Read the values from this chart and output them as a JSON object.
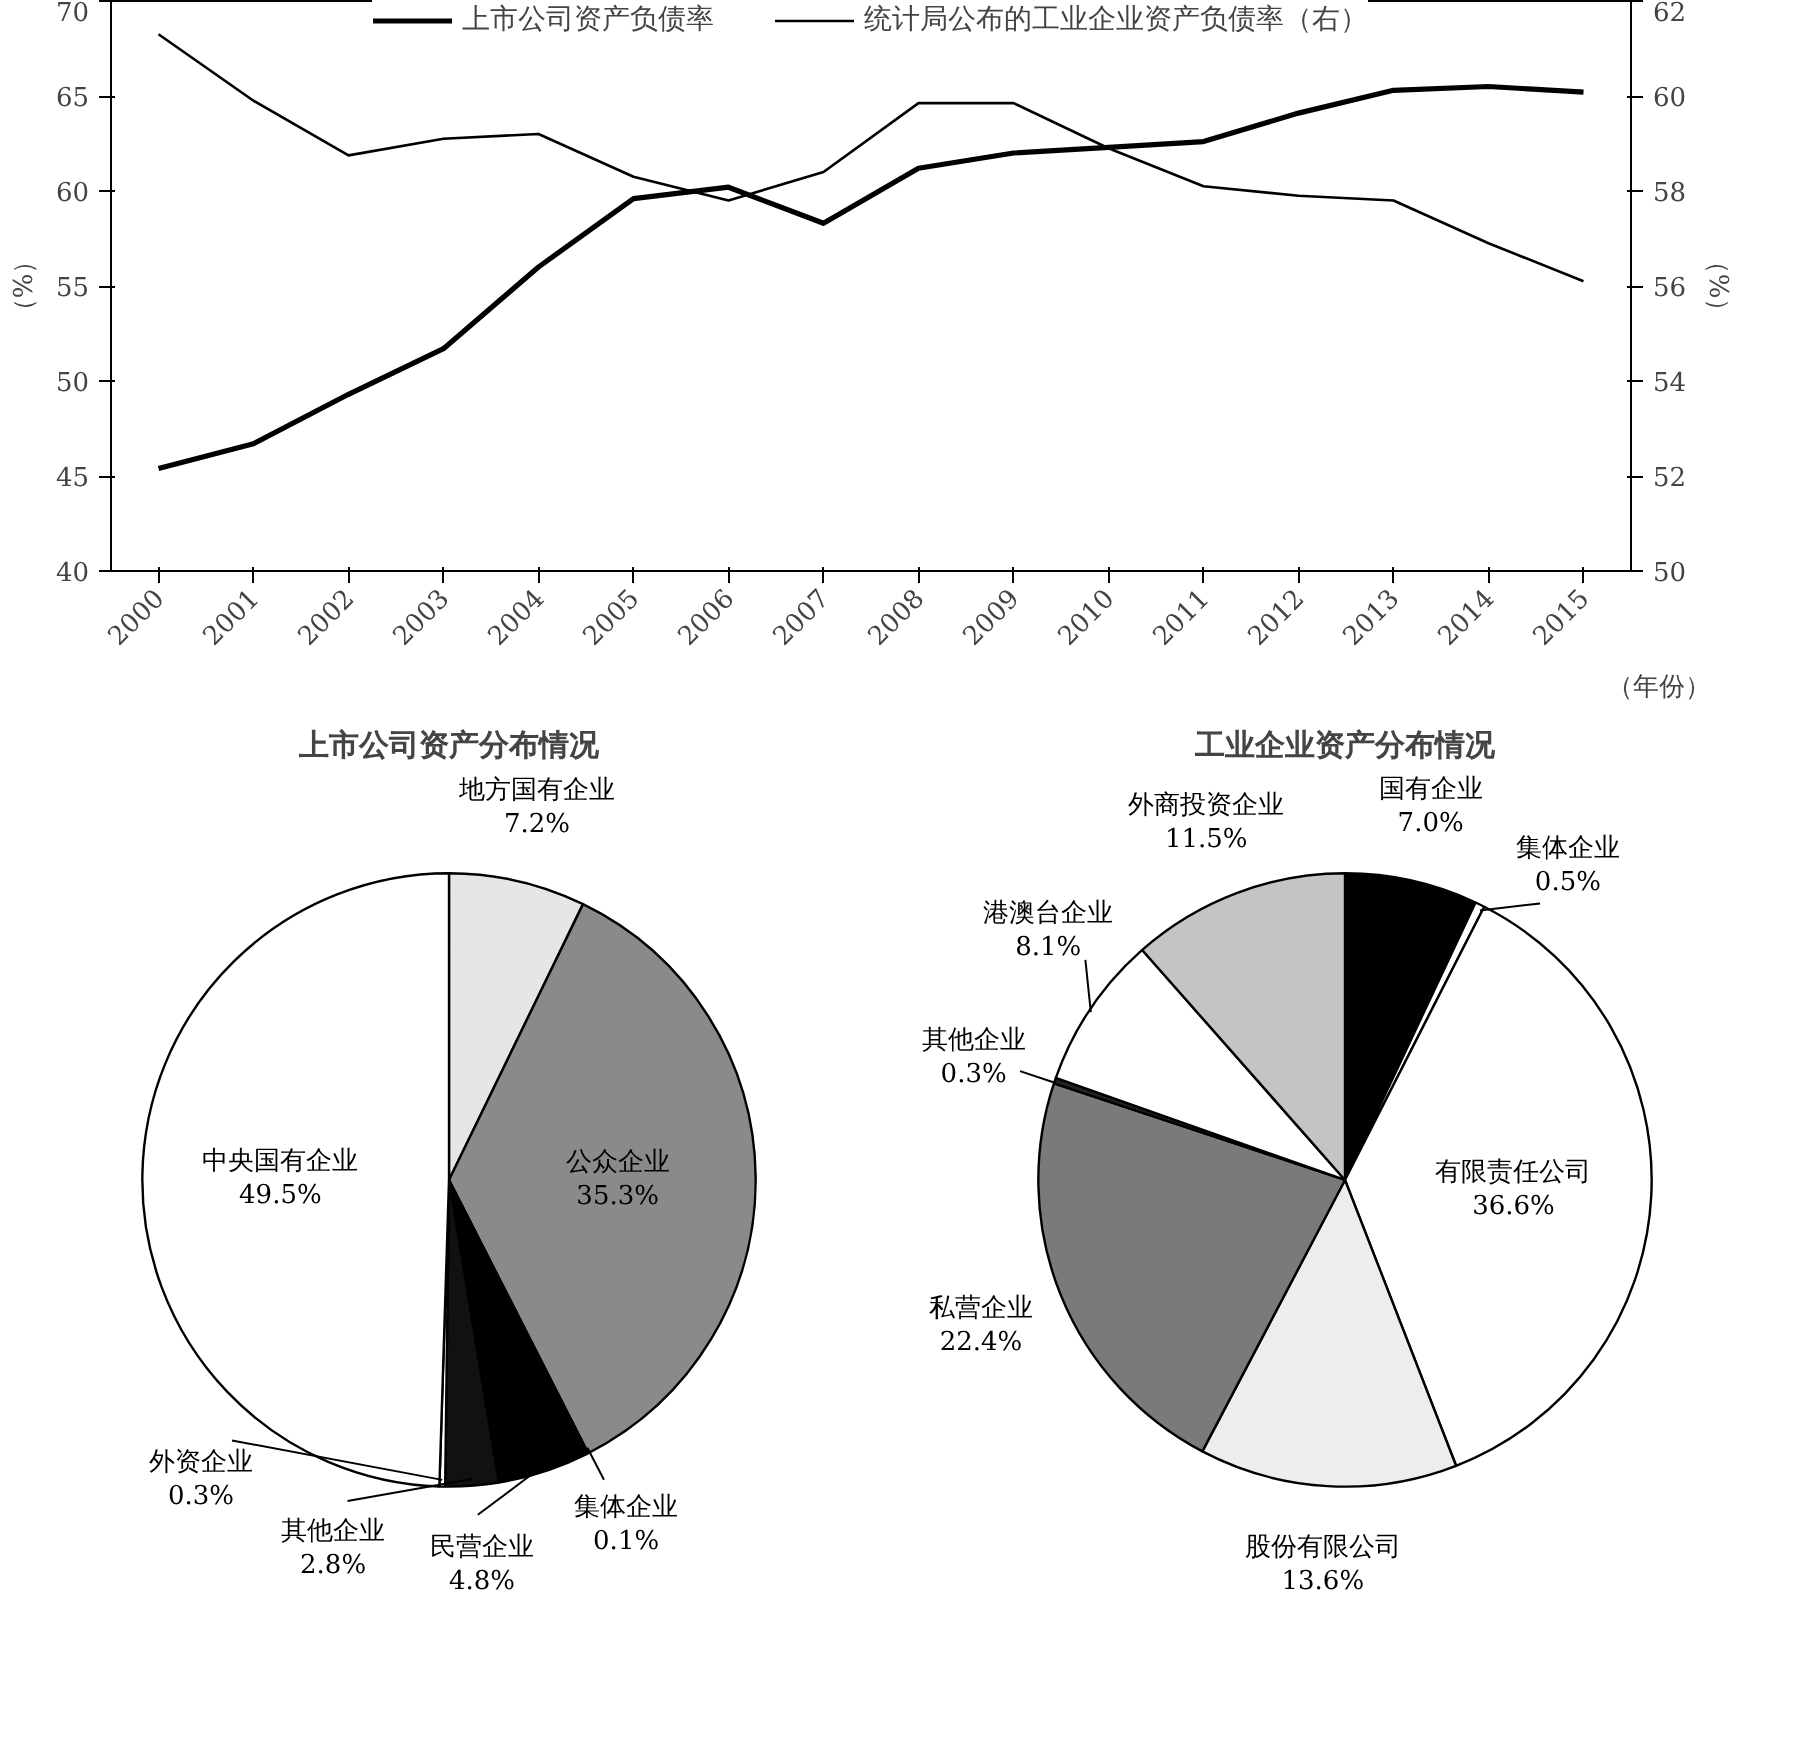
{
  "chart_data": [
    {
      "type": "line",
      "categories": [
        "2000",
        "2001",
        "2002",
        "2003",
        "2004",
        "2005",
        "2006",
        "2007",
        "2008",
        "2009",
        "2010",
        "2011",
        "2012",
        "2013",
        "2014",
        "2015"
      ],
      "xlabel": "（年份）",
      "ylabel": "（%）",
      "y2label": "（%）",
      "ylim": [
        40,
        70
      ],
      "yticks": [
        40,
        45,
        50,
        55,
        60,
        65,
        70
      ],
      "y2lim": [
        50,
        62
      ],
      "y2ticks": [
        50,
        52,
        54,
        56,
        58,
        60,
        62
      ],
      "legend": "top",
      "grid": false,
      "series": [
        {
          "name": "上市公司资产负债率",
          "color": "#000000",
          "values": [
            45.4,
            46.7,
            49.3,
            51.7,
            56.0,
            59.6,
            60.2,
            58.3,
            61.2,
            62.0,
            62.3,
            62.6,
            64.1,
            65.3,
            65.5,
            65.2
          ]
        },
        {
          "name": "统计局公布的工业企业资产负债率（右）",
          "color": "#000000",
          "axis": "y2",
          "values": [
            61.3,
            59.9,
            58.75,
            59.1,
            59.2,
            58.3,
            57.8,
            58.4,
            59.85,
            59.85,
            58.9,
            58.1,
            57.9,
            57.8,
            56.9,
            56.1
          ]
        }
      ]
    },
    {
      "type": "pie",
      "title": "上市公司资产分布情况",
      "categories": [
        "地方国有企业",
        "公众企业",
        "集体企业",
        "民营企业",
        "其他企业",
        "外资企业",
        "中央国有企业"
      ],
      "values": [
        7.2,
        35.3,
        0.1,
        4.8,
        2.8,
        0.3,
        49.5
      ],
      "value_labels": [
        "7.2%",
        "35.3%",
        "0.1%",
        "4.8%",
        "2.8%",
        "0.3%",
        "49.5%"
      ],
      "colors": [
        "#e6e6e6",
        "#8a8a8a",
        "#ffffff",
        "#000000",
        "#111111",
        "#ffffff",
        "#ffffff"
      ]
    },
    {
      "type": "pie",
      "title": "工业企业资产分布情况",
      "categories": [
        "国有企业",
        "集体企业",
        "有限责任公司",
        "股份有限公司",
        "私营企业",
        "其他企业",
        "港澳台企业",
        "外商投资企业"
      ],
      "values": [
        7.0,
        0.5,
        36.6,
        13.6,
        22.4,
        0.3,
        8.1,
        11.5
      ],
      "value_labels": [
        "7.0%",
        "0.5%",
        "36.6%",
        "13.6%",
        "22.4%",
        "0.3%",
        "8.1%",
        "11.5%"
      ],
      "colors": [
        "#000000",
        "#ffffff",
        "#ffffff",
        "#ededed",
        "#7a7a7a",
        "#222222",
        "#ffffff",
        "#c4c4c4"
      ]
    }
  ]
}
